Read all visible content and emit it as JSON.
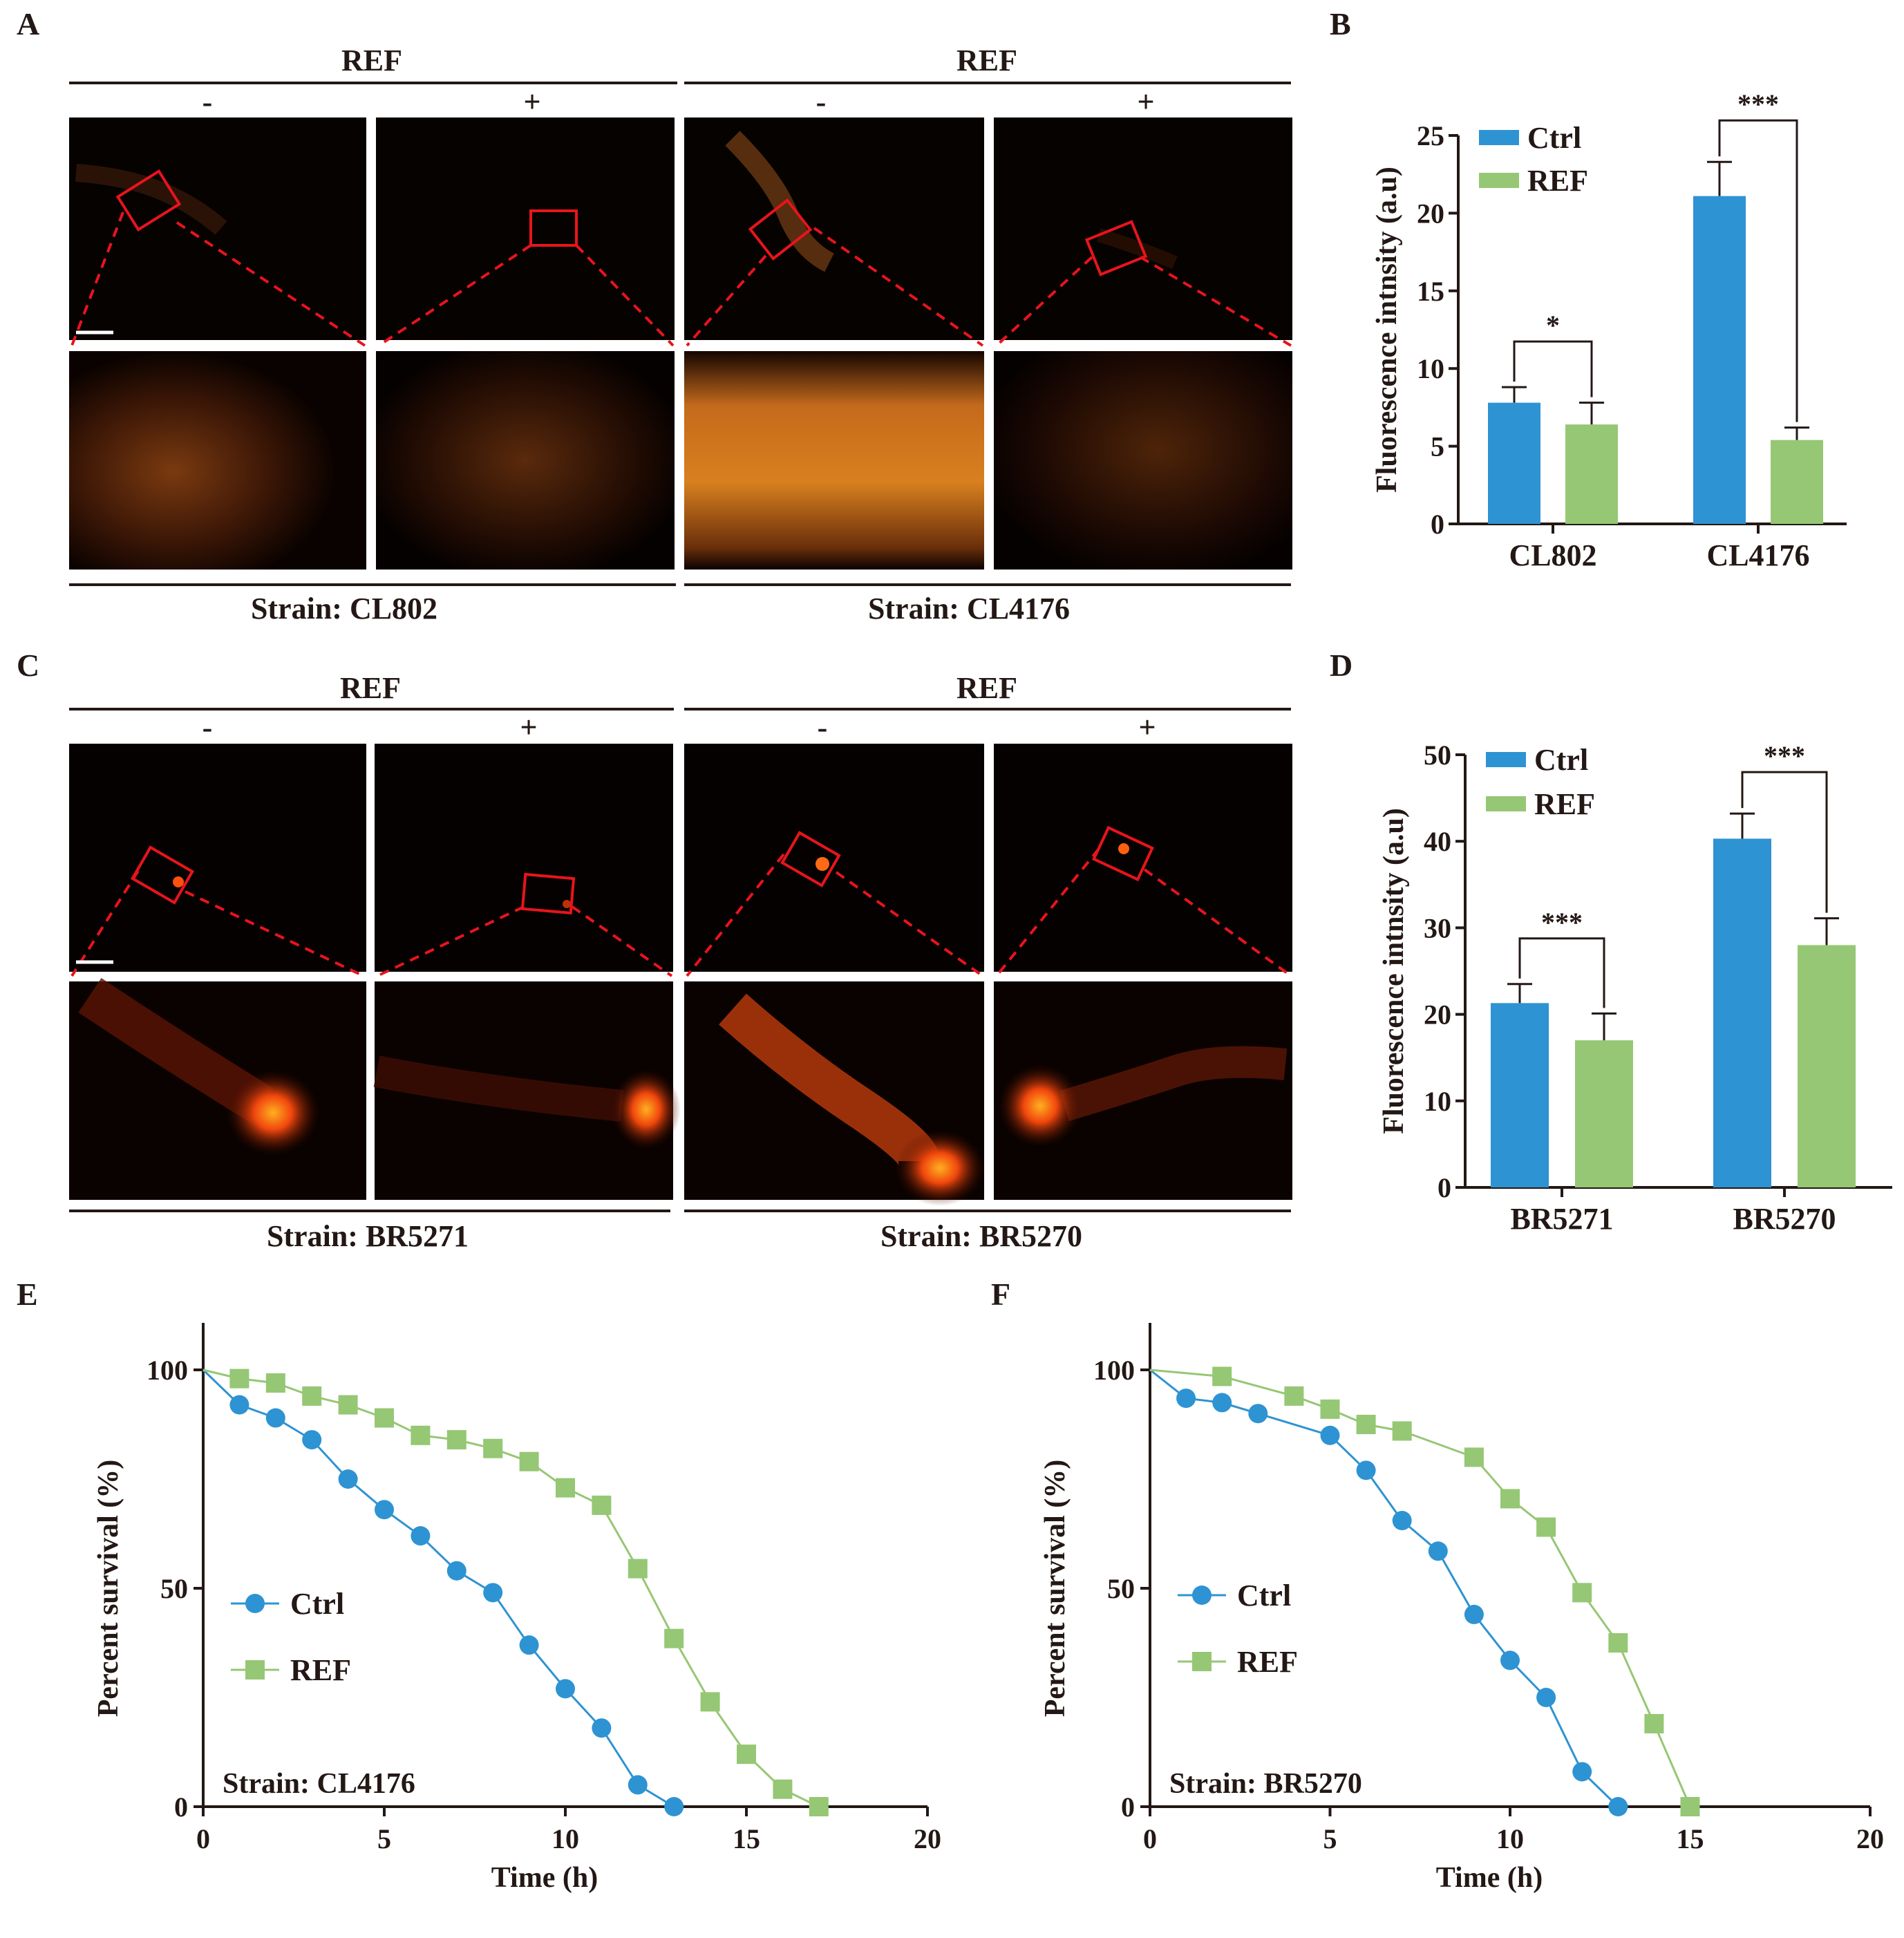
{
  "panels": {
    "A": {
      "label": "A",
      "groups": [
        {
          "header": "REF",
          "minus": "-",
          "plus": "+",
          "strain": "Strain: CL802"
        },
        {
          "header": "REF",
          "minus": "-",
          "plus": "+",
          "strain": "Strain: CL4176"
        }
      ]
    },
    "B": {
      "label": "B"
    },
    "C": {
      "label": "C",
      "groups": [
        {
          "header": "REF",
          "minus": "-",
          "plus": "+",
          "strain": "Strain: BR5271"
        },
        {
          "header": "REF",
          "minus": "-",
          "plus": "+",
          "strain": "Strain: BR5270"
        }
      ]
    },
    "D": {
      "label": "D"
    },
    "E": {
      "label": "E"
    },
    "F": {
      "label": "F"
    }
  },
  "colors": {
    "ctrl": "#2e93d2",
    "ref": "#96c774",
    "roi": "#e8141b",
    "axis": "#231815"
  },
  "chart_data": [
    {
      "id": "B",
      "type": "bar",
      "categories": [
        "CL802",
        "CL4176"
      ],
      "series": [
        {
          "name": "Ctrl",
          "values": [
            7.8,
            21.1
          ],
          "errors": [
            1.0,
            2.2
          ]
        },
        {
          "name": "REF",
          "values": [
            6.4,
            5.4
          ],
          "errors": [
            1.4,
            0.8
          ]
        }
      ],
      "ylabel": "Fluorescence intnsity (a.u)",
      "ylim": [
        0,
        25
      ],
      "yticks": [
        0,
        5,
        10,
        15,
        20,
        25
      ],
      "significance": [
        "*",
        "***"
      ],
      "legend": "top-left"
    },
    {
      "id": "D",
      "type": "bar",
      "categories": [
        "BR5271",
        "BR5270"
      ],
      "series": [
        {
          "name": "Ctrl",
          "values": [
            21.3,
            40.3
          ],
          "errors": [
            2.2,
            2.9
          ]
        },
        {
          "name": "REF",
          "values": [
            17.0,
            28.0
          ],
          "errors": [
            3.1,
            3.1
          ]
        }
      ],
      "ylabel": "Fluorescence intnsity (a.u)",
      "ylim": [
        0,
        50
      ],
      "yticks": [
        0,
        10,
        20,
        30,
        40,
        50
      ],
      "significance": [
        "***",
        "***"
      ],
      "legend": "top-left"
    },
    {
      "id": "E",
      "type": "line",
      "series": [
        {
          "name": "Ctrl",
          "x": [
            0,
            1,
            2,
            3,
            4,
            5,
            6,
            7,
            8,
            9,
            10,
            11,
            12,
            13
          ],
          "y": [
            100,
            92,
            89,
            84,
            75,
            68,
            62,
            54,
            49,
            37,
            27,
            18,
            5,
            0
          ]
        },
        {
          "name": "REF",
          "x": [
            0,
            1,
            2,
            3,
            4,
            5,
            6,
            7,
            8,
            9,
            10,
            11,
            12,
            13,
            14,
            15,
            16,
            17
          ],
          "y": [
            100,
            98,
            97,
            94,
            92,
            89,
            85,
            84,
            82,
            79,
            73,
            69,
            54.5,
            38.5,
            24,
            12,
            4,
            0
          ]
        }
      ],
      "xlabel": "Time (h)",
      "ylabel": "Percent survival (%)",
      "xlim": [
        0,
        20
      ],
      "ylim": [
        0,
        100
      ],
      "xticks": [
        0,
        5,
        10,
        15,
        20
      ],
      "yticks": [
        0,
        50,
        100
      ],
      "annotation": "Strain: CL4176",
      "legend": "bottom-left"
    },
    {
      "id": "F",
      "type": "line",
      "series": [
        {
          "name": "Ctrl",
          "x": [
            0,
            1,
            2,
            3,
            5,
            6,
            7,
            8,
            9,
            10,
            11,
            12,
            13
          ],
          "y": [
            100,
            93.5,
            92.5,
            90,
            85,
            77,
            65.5,
            58.5,
            44,
            33.5,
            25,
            8,
            0
          ]
        },
        {
          "name": "REF",
          "x": [
            0,
            2,
            4,
            5,
            6,
            7,
            9,
            10,
            11,
            12,
            13,
            14,
            15
          ],
          "y": [
            100,
            98.5,
            94,
            91,
            87.5,
            86,
            80,
            70.5,
            64,
            49,
            37.5,
            19,
            0
          ]
        }
      ],
      "xlabel": "Time (h)",
      "ylabel": "Percent survival (%)",
      "xlim": [
        0,
        20
      ],
      "ylim": [
        0,
        100
      ],
      "xticks": [
        0,
        5,
        10,
        15,
        20
      ],
      "yticks": [
        0,
        50,
        100
      ],
      "annotation": "Strain: BR5270",
      "legend": "bottom-left"
    }
  ]
}
